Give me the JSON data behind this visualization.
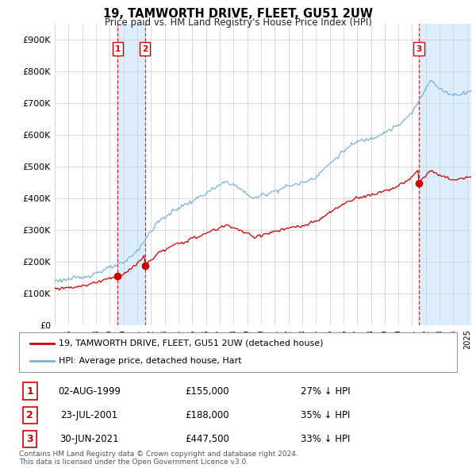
{
  "title": "19, TAMWORTH DRIVE, FLEET, GU51 2UW",
  "subtitle": "Price paid vs. HM Land Registry's House Price Index (HPI)",
  "ylim": [
    0,
    950000
  ],
  "yticks": [
    0,
    100000,
    200000,
    300000,
    400000,
    500000,
    600000,
    700000,
    800000,
    900000
  ],
  "ytick_labels": [
    "£0",
    "£100K",
    "£200K",
    "£300K",
    "£400K",
    "£500K",
    "£600K",
    "£700K",
    "£800K",
    "£900K"
  ],
  "background_color": "#ffffff",
  "plot_bg_color": "#ffffff",
  "grid_color": "#cccccc",
  "hpi_color": "#7ab3d4",
  "price_color": "#cc0000",
  "band_color": "#ddeeff",
  "legend_entries": [
    "19, TAMWORTH DRIVE, FLEET, GU51 2UW (detached house)",
    "HPI: Average price, detached house, Hart"
  ],
  "transactions": [
    {
      "num": 1,
      "date": "02-AUG-1999",
      "price": 155000,
      "hpi_diff": "27% ↓ HPI",
      "x_year": 1999.583
    },
    {
      "num": 2,
      "date": "23-JUL-2001",
      "price": 188000,
      "hpi_diff": "35% ↓ HPI",
      "x_year": 2001.556
    },
    {
      "num": 3,
      "date": "30-JUN-2021",
      "price": 447500,
      "hpi_diff": "33% ↓ HPI",
      "x_year": 2021.496
    }
  ],
  "footer": "Contains HM Land Registry data © Crown copyright and database right 2024.\nThis data is licensed under the Open Government Licence v3.0.",
  "xmin": 1995.0,
  "xmax": 2025.3
}
